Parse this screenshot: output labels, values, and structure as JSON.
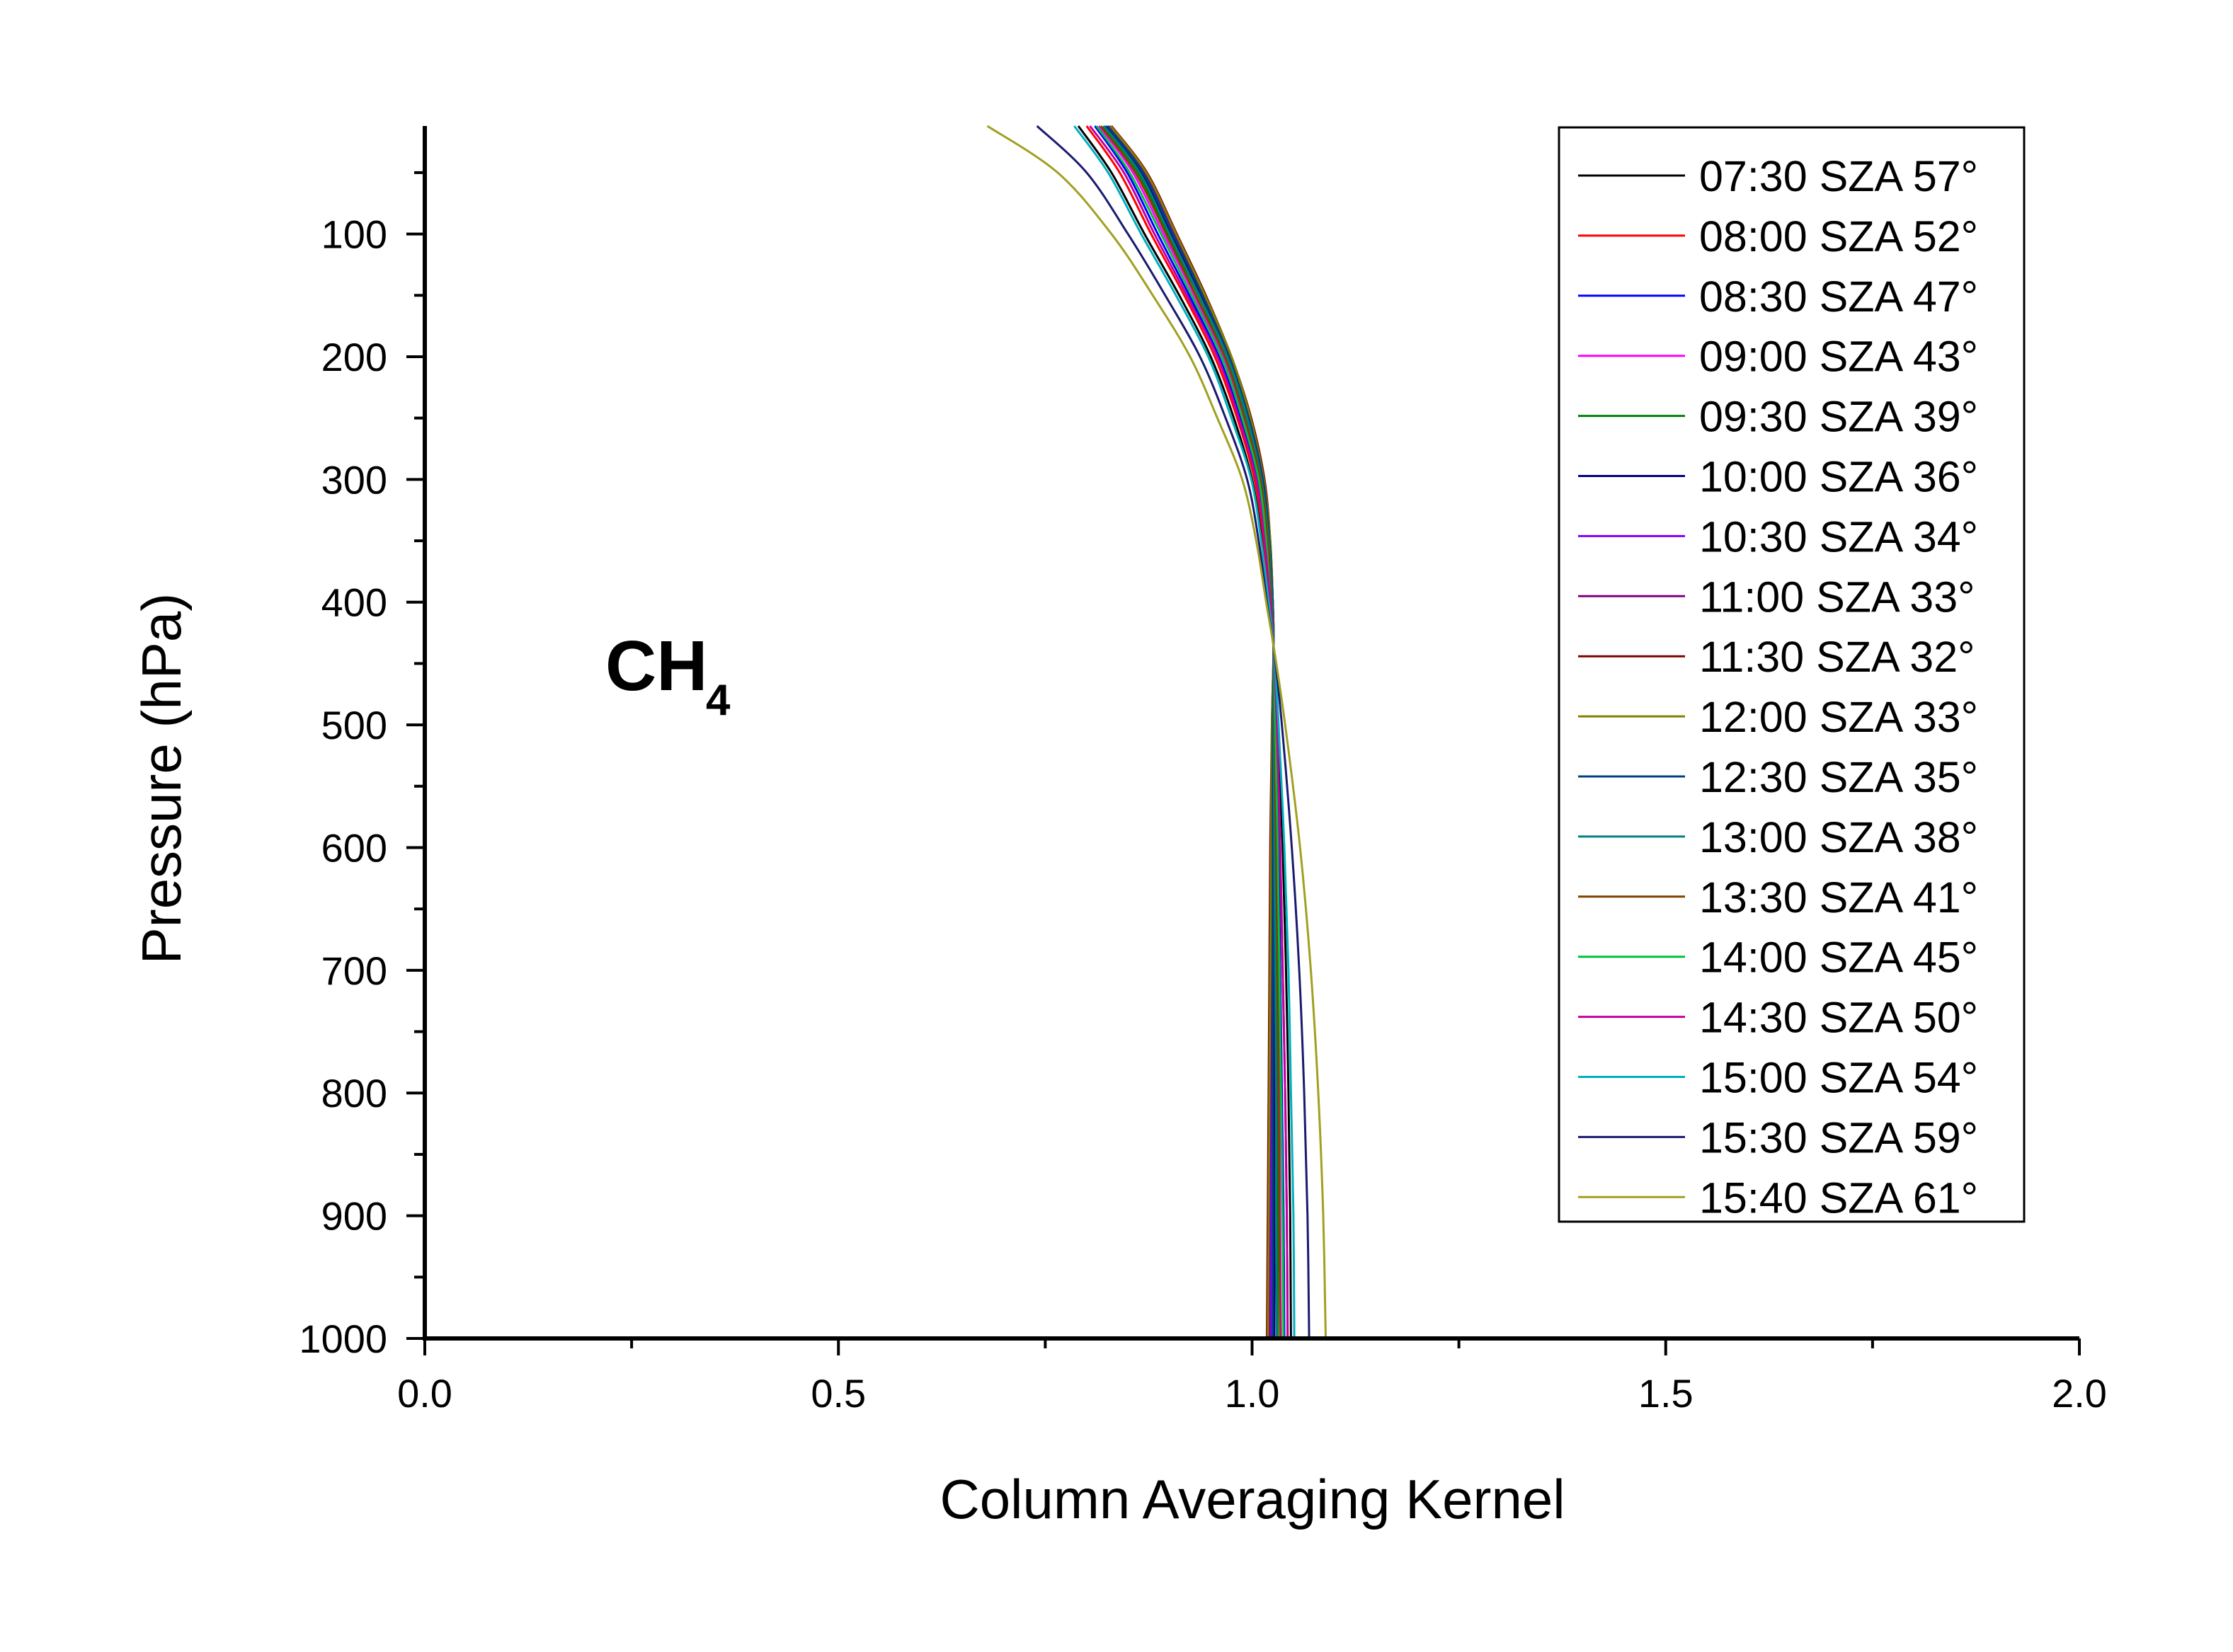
{
  "chart_data": {
    "type": "line",
    "xlabel": "Column Averaging Kernel",
    "ylabel": "Pressure (hPa)",
    "xlim": [
      0,
      2
    ],
    "ylim": [
      12,
      1000
    ],
    "y_inverted": true,
    "x_ticks": [
      "0.0",
      "0.5",
      "1.0",
      "1.5",
      "2.0"
    ],
    "y_ticks": [
      "100",
      "200",
      "300",
      "400",
      "500",
      "600",
      "700",
      "800",
      "900",
      "1000"
    ],
    "grid": false,
    "legend_position": "top-right",
    "annotation": {
      "main": "CH",
      "sub": "4"
    },
    "pressure": [
      12,
      50,
      100,
      150,
      200,
      250,
      300,
      350,
      400,
      436,
      500,
      600,
      700,
      800,
      900,
      1000
    ],
    "series": [
      {
        "name": "07:30 SZA 57°",
        "color": "#000000",
        "values": [
          0.79,
          0.83,
          0.87,
          0.912,
          0.95,
          0.978,
          1.0,
          1.012,
          1.02,
          1.026,
          1.031,
          1.037,
          1.041,
          1.044,
          1.046,
          1.047
        ]
      },
      {
        "name": "08:00 SZA 52°",
        "color": "#ff0000",
        "values": [
          0.8,
          0.84,
          0.878,
          0.918,
          0.955,
          0.982,
          1.003,
          1.014,
          1.021,
          1.026,
          1.03,
          1.034,
          1.037,
          1.04,
          1.042,
          1.043
        ]
      },
      {
        "name": "08:30 SZA 47°",
        "color": "#0000ff",
        "values": [
          0.81,
          0.849,
          0.886,
          0.924,
          0.96,
          0.986,
          1.006,
          1.016,
          1.022,
          1.026,
          1.029,
          1.032,
          1.034,
          1.036,
          1.038,
          1.039
        ]
      },
      {
        "name": "09:00 SZA 43°",
        "color": "#ff00ff",
        "values": [
          0.815,
          0.856,
          0.893,
          0.93,
          0.965,
          0.99,
          1.009,
          1.018,
          1.023,
          1.026,
          1.028,
          1.03,
          1.032,
          1.033,
          1.034,
          1.035
        ]
      },
      {
        "name": "09:30 SZA 39°",
        "color": "#008000",
        "values": [
          0.82,
          0.862,
          0.898,
          0.935,
          0.969,
          0.993,
          1.011,
          1.019,
          1.024,
          1.026,
          1.027,
          1.028,
          1.029,
          1.03,
          1.031,
          1.031
        ]
      },
      {
        "name": "10:00 SZA 36°",
        "color": "#000080",
        "values": [
          0.823,
          0.866,
          0.902,
          0.938,
          0.971,
          0.995,
          1.012,
          1.02,
          1.024,
          1.026,
          1.026,
          1.026,
          1.027,
          1.027,
          1.027,
          1.027
        ]
      },
      {
        "name": "10:30 SZA 34°",
        "color": "#8000ff",
        "values": [
          0.826,
          0.869,
          0.905,
          0.941,
          0.973,
          0.997,
          1.013,
          1.021,
          1.025,
          1.026,
          1.025,
          1.025,
          1.024,
          1.024,
          1.023,
          1.023
        ]
      },
      {
        "name": "11:00 SZA 33°",
        "color": "#800080",
        "values": [
          0.828,
          0.871,
          0.907,
          0.942,
          0.974,
          0.998,
          1.014,
          1.021,
          1.025,
          1.026,
          1.025,
          1.024,
          1.023,
          1.022,
          1.021,
          1.021
        ]
      },
      {
        "name": "11:30 SZA 32°",
        "color": "#800000",
        "values": [
          0.83,
          0.873,
          0.909,
          0.944,
          0.975,
          0.999,
          1.015,
          1.022,
          1.025,
          1.026,
          1.024,
          1.022,
          1.021,
          1.02,
          1.019,
          1.018
        ]
      },
      {
        "name": "12:00 SZA 33°",
        "color": "#808000",
        "values": [
          0.829,
          0.872,
          0.908,
          0.943,
          0.975,
          0.998,
          1.014,
          1.022,
          1.025,
          1.026,
          1.024,
          1.023,
          1.022,
          1.021,
          1.02,
          1.019
        ]
      },
      {
        "name": "12:30 SZA 35°",
        "color": "#004080",
        "values": [
          0.825,
          0.868,
          0.904,
          0.94,
          0.972,
          0.996,
          1.013,
          1.021,
          1.025,
          1.026,
          1.025,
          1.025,
          1.025,
          1.025,
          1.025,
          1.025
        ]
      },
      {
        "name": "13:00 SZA 38°",
        "color": "#008080",
        "values": [
          0.821,
          0.864,
          0.9,
          0.936,
          0.97,
          0.994,
          1.011,
          1.02,
          1.024,
          1.026,
          1.026,
          1.027,
          1.028,
          1.029,
          1.029,
          1.03
        ]
      },
      {
        "name": "13:30 SZA 41°",
        "color": "#804000",
        "values": [
          0.817,
          0.859,
          0.896,
          0.932,
          0.967,
          0.991,
          1.01,
          1.019,
          1.023,
          1.026,
          1.027,
          1.029,
          1.031,
          1.032,
          1.033,
          1.034
        ]
      },
      {
        "name": "14:00 SZA 45°",
        "color": "#00c040",
        "values": [
          0.812,
          0.852,
          0.89,
          0.927,
          0.963,
          0.988,
          1.008,
          1.017,
          1.022,
          1.026,
          1.028,
          1.031,
          1.033,
          1.035,
          1.037,
          1.038
        ]
      },
      {
        "name": "14:30 SZA 50°",
        "color": "#c000a0",
        "values": [
          0.804,
          0.845,
          0.882,
          0.921,
          0.958,
          0.984,
          1.005,
          1.015,
          1.022,
          1.026,
          1.03,
          1.034,
          1.037,
          1.04,
          1.042,
          1.043
        ]
      },
      {
        "name": "15:00 SZA 54°",
        "color": "#00b0c0",
        "values": [
          0.785,
          0.826,
          0.866,
          0.908,
          0.947,
          0.975,
          0.999,
          1.011,
          1.02,
          1.026,
          1.032,
          1.039,
          1.044,
          1.047,
          1.05,
          1.051
        ]
      },
      {
        "name": "15:30 SZA 59°",
        "color": "#1a1a70",
        "values": [
          0.74,
          0.8,
          0.85,
          0.895,
          0.937,
          0.968,
          0.994,
          1.008,
          1.018,
          1.026,
          1.036,
          1.048,
          1.057,
          1.063,
          1.067,
          1.069
        ]
      },
      {
        "name": "15:40 SZA 61°",
        "color": "#a0a020",
        "values": [
          0.68,
          0.765,
          0.83,
          0.88,
          0.925,
          0.958,
          0.988,
          1.005,
          1.017,
          1.026,
          1.04,
          1.058,
          1.071,
          1.08,
          1.086,
          1.089
        ]
      }
    ]
  }
}
